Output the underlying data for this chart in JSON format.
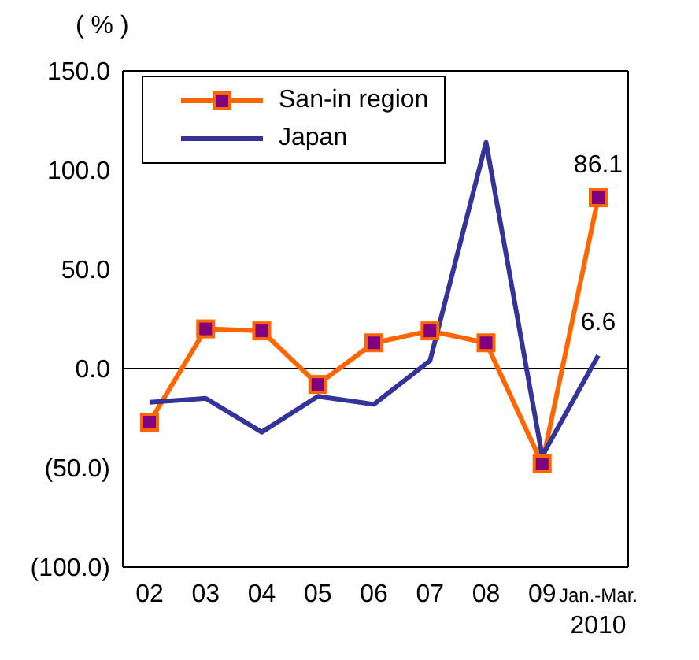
{
  "chart_data": {
    "type": "line",
    "ylabel": "( % )",
    "categories": [
      "02",
      "03",
      "04",
      "05",
      "06",
      "07",
      "08",
      "09",
      "Jan.-Mar. 2010"
    ],
    "series": [
      {
        "name": "San-in region",
        "color": "#ff6600",
        "marker": "square",
        "values": [
          -27,
          20,
          19,
          -8,
          13,
          19,
          13,
          -48,
          86.1
        ],
        "value_labels": [
          null,
          null,
          null,
          null,
          null,
          null,
          null,
          null,
          "86.1"
        ]
      },
      {
        "name": "Japan",
        "color": "#333399",
        "marker": "none",
        "values": [
          -17,
          -15,
          -32,
          -14,
          -18,
          4,
          114,
          -44,
          6.6
        ],
        "value_labels": [
          null,
          null,
          null,
          null,
          null,
          null,
          null,
          null,
          "6.6"
        ]
      }
    ],
    "ylim": [
      -100,
      150
    ],
    "yticks": [
      {
        "value": -100,
        "label": "(100.0)"
      },
      {
        "value": -50,
        "label": "(50.0)"
      },
      {
        "value": 0,
        "label": "0.0"
      },
      {
        "value": 50,
        "label": "50.0"
      },
      {
        "value": 100,
        "label": "100.0"
      },
      {
        "value": 150,
        "label": "150.0"
      }
    ],
    "ref_lines": [
      {
        "axis": "y",
        "value": 0,
        "color": "#000000"
      }
    ],
    "grid": false,
    "legend": "top left"
  }
}
